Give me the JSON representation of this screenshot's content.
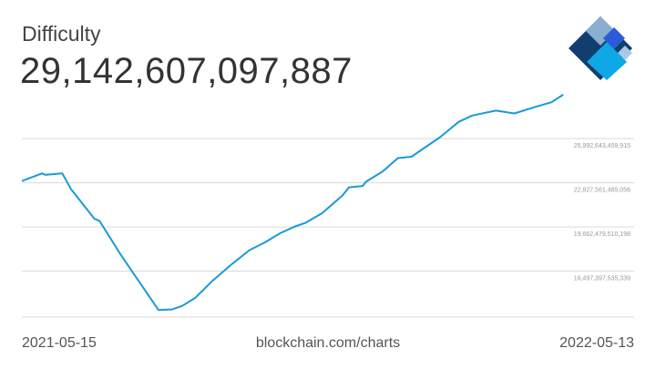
{
  "header": {
    "title": "Difficulty",
    "current_value": "29,142,607,097,887"
  },
  "footer": {
    "start_date": "2021-05-15",
    "source": "blockchain.com/charts",
    "end_date": "2022-05-13"
  },
  "colors": {
    "line": "#1a9ad6",
    "grid": "#d9d9d9",
    "tick_text": "#999999",
    "logo_dark": "#123d6e",
    "logo_light": "#8aaed0",
    "logo_mid": "#2b5bd8",
    "logo_cyan": "#0fa8e6",
    "logo_pale": "#a7c9e6"
  },
  "chart_data": {
    "type": "line",
    "title": "Difficulty",
    "xlabel": "",
    "ylabel": "",
    "x_range": [
      "2021-05-15",
      "2022-05-13"
    ],
    "ylim": [
      13200000000000,
      29400000000000
    ],
    "yticks": [
      16497397535339,
      19662479510198,
      22827561485056,
      25992643459915
    ],
    "ytick_labels": [
      "16,497,397,535,339",
      "19,662,479,510,198",
      "22,827,561,485,056",
      "25,992,643,459,915"
    ],
    "grid": true,
    "series": [
      {
        "values": [
          [
            "2021-05-15",
            22950000000000
          ],
          [
            "2021-05-27",
            23500000000000
          ],
          [
            "2021-05-29",
            23400000000000
          ],
          [
            "2021-06-08",
            23500000000000
          ],
          [
            "2021-06-13",
            22400000000000
          ],
          [
            "2021-06-27",
            20250000000000
          ],
          [
            "2021-06-30",
            20100000000000
          ],
          [
            "2021-07-13",
            17600000000000
          ],
          [
            "2021-07-22",
            16000000000000
          ],
          [
            "2021-08-04",
            13700000000000
          ],
          [
            "2021-08-12",
            13750000000000
          ],
          [
            "2021-08-18",
            14000000000000
          ],
          [
            "2021-08-26",
            14600000000000
          ],
          [
            "2021-09-05",
            15800000000000
          ],
          [
            "2021-09-16",
            16950000000000
          ],
          [
            "2021-09-27",
            18000000000000
          ],
          [
            "2021-10-06",
            18550000000000
          ],
          [
            "2021-10-15",
            19200000000000
          ],
          [
            "2021-10-24",
            19700000000000
          ],
          [
            "2021-10-30",
            19950000000000
          ],
          [
            "2021-11-09",
            20650000000000
          ],
          [
            "2021-11-21",
            21900000000000
          ],
          [
            "2021-11-25",
            22500000000000
          ],
          [
            "2021-12-03",
            22600000000000
          ],
          [
            "2021-12-05",
            22900000000000
          ],
          [
            "2021-12-15",
            23650000000000
          ],
          [
            "2021-12-24",
            24600000000000
          ],
          [
            "2022-01-01",
            24700000000000
          ],
          [
            "2022-01-18",
            26100000000000
          ],
          [
            "2022-01-29",
            27200000000000
          ],
          [
            "2022-02-06",
            27650000000000
          ],
          [
            "2022-02-20",
            28000000000000
          ],
          [
            "2022-03-03",
            27800000000000
          ],
          [
            "2022-03-15",
            28250000000000
          ],
          [
            "2022-03-25",
            28600000000000
          ],
          [
            "2022-04-01",
            29142607097887
          ]
        ]
      }
    ]
  }
}
